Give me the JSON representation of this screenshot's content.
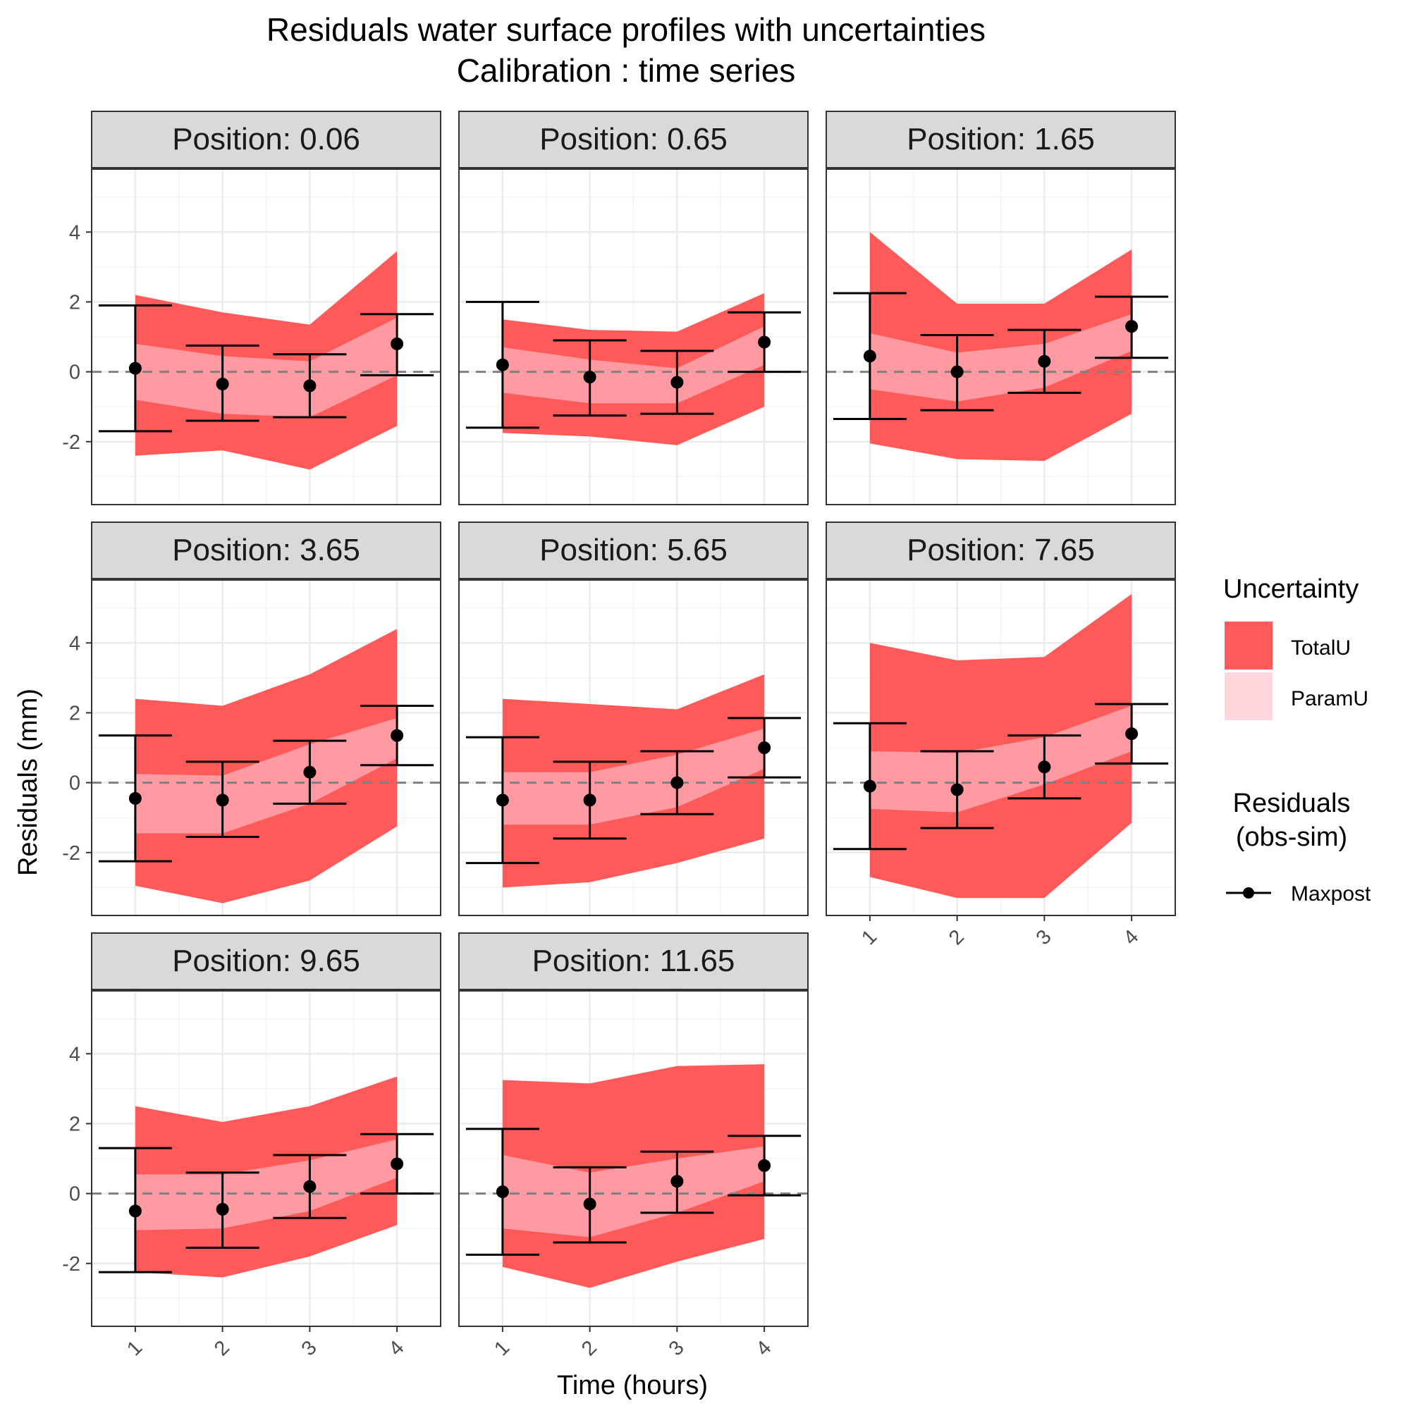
{
  "chart_data": {
    "type": "area",
    "title": "Residuals water surface profiles with uncertainties",
    "subtitle": "Calibration : time series",
    "xlabel": "Time (hours)",
    "ylabel": "Residuals (mm)",
    "facet_prefix": "Position:",
    "x": [
      1,
      2,
      3,
      4
    ],
    "x_tick_labels": [
      "1",
      "2",
      "3",
      "4"
    ],
    "xlim": [
      0.5,
      4.5
    ],
    "ylim": [
      -3.8,
      5.8
    ],
    "y_ticks": [
      4,
      2,
      0,
      -2
    ],
    "y_tick_labels": [
      "4",
      "2",
      "0",
      "-2"
    ],
    "grid": true,
    "reference_line_y": 0,
    "legend_placement": "right",
    "legend": {
      "uncertainty_title": "Uncertainty",
      "uncertainty_items": [
        {
          "label": "TotalU",
          "color": "#ff5a5a"
        },
        {
          "label": "ParamU",
          "color": "#ffd6dc"
        }
      ],
      "residuals_title_line1": "Residuals",
      "residuals_title_line2": "(obs-sim)",
      "residuals_item": "Maxpost"
    },
    "colors": {
      "total_u": "#ff5a5a",
      "param_u": "#ffd6dc",
      "param_u_on_total": "#ff9aa2",
      "strip": "#d9d9d9",
      "point": "#000000",
      "zero_line": "#808080"
    },
    "facets": [
      {
        "label": "0.06",
        "total_lo": [
          -2.4,
          -2.25,
          -2.8,
          -1.55
        ],
        "total_hi": [
          2.2,
          1.7,
          1.35,
          3.45
        ],
        "param_lo": [
          -0.8,
          -1.2,
          -1.3,
          -0.1
        ],
        "param_hi": [
          0.8,
          0.45,
          0.3,
          1.55
        ],
        "maxpost": [
          0.1,
          -0.35,
          -0.4,
          0.8
        ],
        "err_lo": [
          -1.7,
          -1.4,
          -1.3,
          -0.1
        ],
        "err_hi": [
          1.9,
          0.75,
          0.5,
          1.65
        ]
      },
      {
        "label": "0.65",
        "total_lo": [
          -1.75,
          -1.85,
          -2.1,
          -1.0
        ],
        "total_hi": [
          1.5,
          1.2,
          1.15,
          2.25
        ],
        "param_lo": [
          -0.6,
          -0.9,
          -0.9,
          0.2
        ],
        "param_hi": [
          0.7,
          0.35,
          0.1,
          1.3
        ],
        "maxpost": [
          0.2,
          -0.15,
          -0.3,
          0.85
        ],
        "err_lo": [
          -1.6,
          -1.25,
          -1.2,
          0.0
        ],
        "err_hi": [
          2.0,
          0.9,
          0.6,
          1.7
        ]
      },
      {
        "label": "1.65",
        "total_lo": [
          -2.05,
          -2.5,
          -2.55,
          -1.2
        ],
        "total_hi": [
          4.0,
          1.95,
          1.95,
          3.5
        ],
        "param_lo": [
          -0.5,
          -0.85,
          -0.45,
          0.6
        ],
        "param_hi": [
          1.1,
          0.55,
          0.8,
          1.65
        ],
        "maxpost": [
          0.45,
          0.0,
          0.3,
          1.3
        ],
        "err_lo": [
          -1.35,
          -1.1,
          -0.6,
          0.4
        ],
        "err_hi": [
          2.25,
          1.05,
          1.2,
          2.15
        ]
      },
      {
        "label": "3.65",
        "total_lo": [
          -2.95,
          -3.45,
          -2.8,
          -1.25
        ],
        "total_hi": [
          2.4,
          2.2,
          3.1,
          4.4
        ],
        "param_lo": [
          -1.45,
          -1.45,
          -0.6,
          0.7
        ],
        "param_hi": [
          0.25,
          0.2,
          1.1,
          1.85
        ],
        "maxpost": [
          -0.45,
          -0.5,
          0.3,
          1.35
        ],
        "err_lo": [
          -2.25,
          -1.55,
          -0.6,
          0.5
        ],
        "err_hi": [
          1.35,
          0.6,
          1.2,
          2.2
        ]
      },
      {
        "label": "5.65",
        "total_lo": [
          -3.0,
          -2.85,
          -2.3,
          -1.6
        ],
        "total_hi": [
          2.4,
          2.25,
          2.1,
          3.1
        ],
        "param_lo": [
          -1.2,
          -1.2,
          -0.7,
          0.4
        ],
        "param_hi": [
          0.3,
          0.3,
          0.8,
          1.55
        ],
        "maxpost": [
          -0.5,
          -0.5,
          0.0,
          1.0
        ],
        "err_lo": [
          -2.3,
          -1.6,
          -0.9,
          0.15
        ],
        "err_hi": [
          1.3,
          0.6,
          0.9,
          1.85
        ]
      },
      {
        "label": "7.65",
        "total_lo": [
          -2.7,
          -3.3,
          -3.3,
          -1.15
        ],
        "total_hi": [
          4.0,
          3.5,
          3.6,
          5.4
        ],
        "param_lo": [
          -0.75,
          -0.85,
          -0.05,
          0.9
        ],
        "param_hi": [
          0.9,
          0.85,
          1.3,
          2.2
        ],
        "maxpost": [
          -0.1,
          -0.2,
          0.45,
          1.4
        ],
        "err_lo": [
          -1.9,
          -1.3,
          -0.45,
          0.55
        ],
        "err_hi": [
          1.7,
          0.9,
          1.35,
          2.25
        ]
      },
      {
        "label": "9.65",
        "total_lo": [
          -2.25,
          -2.4,
          -1.8,
          -0.9
        ],
        "total_hi": [
          2.5,
          2.05,
          2.5,
          3.35
        ],
        "param_lo": [
          -1.05,
          -1.0,
          -0.5,
          0.45
        ],
        "param_hi": [
          0.55,
          0.55,
          0.95,
          1.55
        ],
        "maxpost": [
          -0.5,
          -0.45,
          0.2,
          0.85
        ],
        "err_lo": [
          -2.25,
          -1.55,
          -0.7,
          0.0
        ],
        "err_hi": [
          1.3,
          0.6,
          1.1,
          1.7
        ]
      },
      {
        "label": "11.65",
        "total_lo": [
          -2.1,
          -2.7,
          -1.95,
          -1.3
        ],
        "total_hi": [
          3.25,
          3.15,
          3.65,
          3.7
        ],
        "param_lo": [
          -1.0,
          -1.25,
          -0.55,
          0.35
        ],
        "param_hi": [
          1.1,
          0.6,
          1.0,
          1.35
        ],
        "maxpost": [
          0.05,
          -0.3,
          0.35,
          0.8
        ],
        "err_lo": [
          -1.75,
          -1.4,
          -0.55,
          -0.05
        ],
        "err_hi": [
          1.85,
          0.75,
          1.2,
          1.65
        ]
      }
    ]
  }
}
